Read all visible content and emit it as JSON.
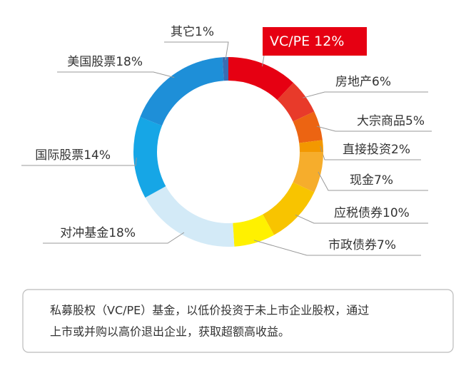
{
  "chart_data": {
    "type": "pie",
    "categories": [
      "VC/PE",
      "房地产",
      "大宗商品",
      "直接投资",
      "现金",
      "应税债券",
      "市政债券",
      "对冲基金",
      "国际股票",
      "美国股票",
      "其它"
    ],
    "values": [
      12,
      6,
      5,
      2,
      7,
      10,
      7,
      18,
      14,
      18,
      1
    ],
    "value_labels": [
      "12%",
      "6%",
      "5%",
      "2%",
      "7%",
      "10%",
      "7%",
      "18%",
      "14%",
      "18%",
      "1%"
    ],
    "colors": [
      "#e60012",
      "#e83a2a",
      "#ec6412",
      "#f39800",
      "#f6ad2c",
      "#f8c400",
      "#fff100",
      "#d3eaf7",
      "#16a6e6",
      "#1e8fd8",
      "#3a6db3"
    ]
  },
  "note": [
    "私募股权（VC/PE）基金，以低价投资于未上市企业股权，通过",
    "上市或并购以高价退出企业，获取超额高收益。"
  ]
}
